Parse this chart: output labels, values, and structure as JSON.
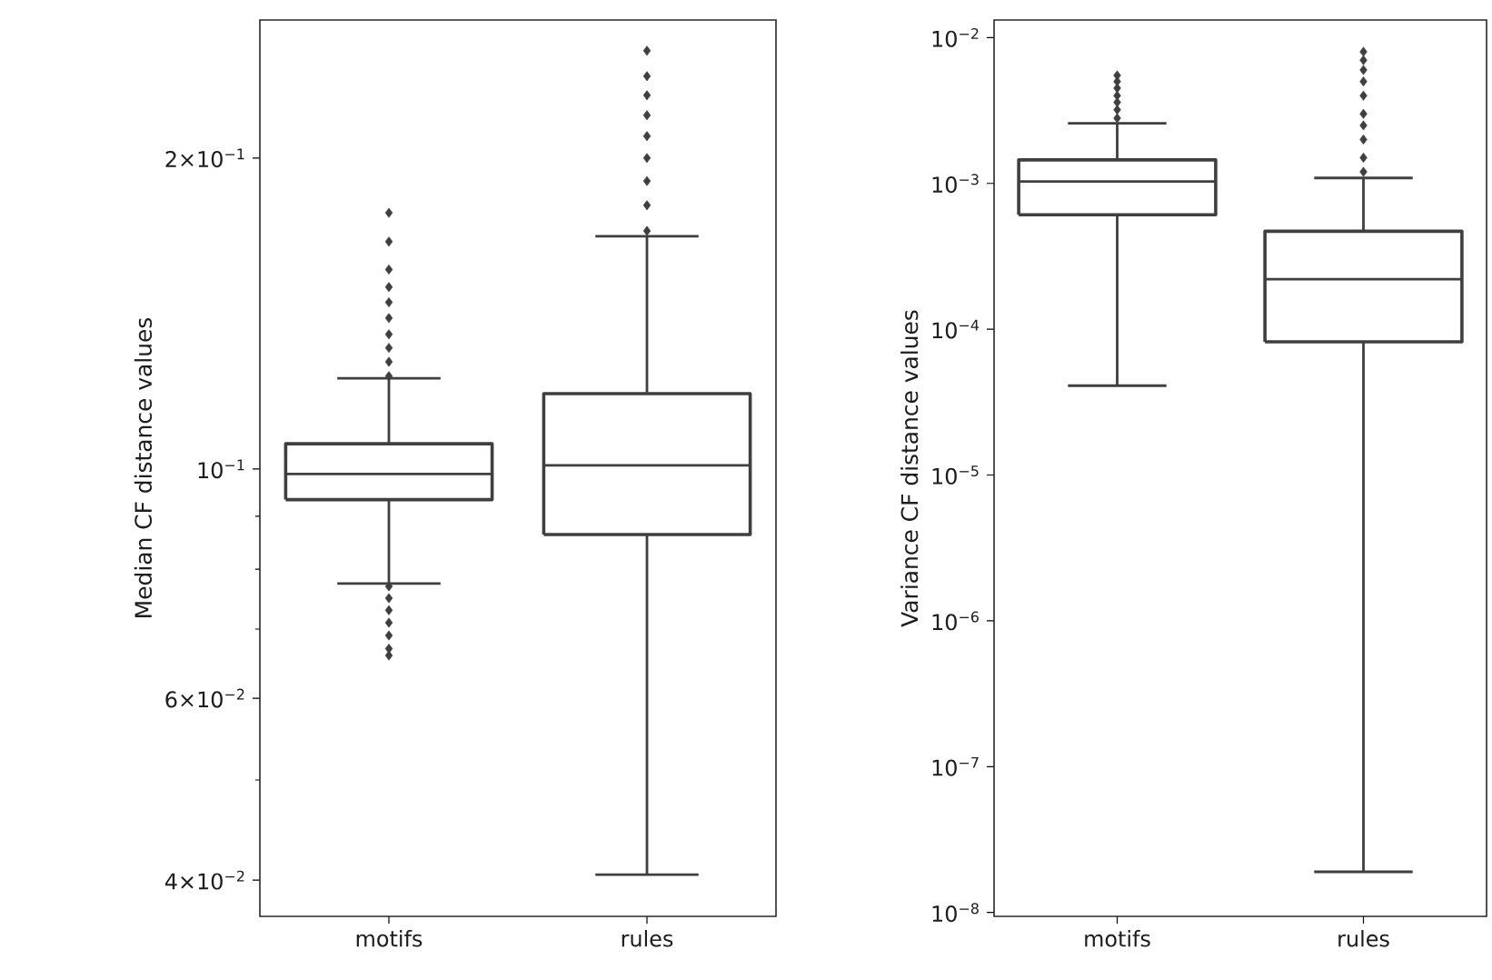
{
  "chart_data": [
    {
      "type": "box",
      "ylabel": "Median CF distance values",
      "categories": [
        "motifs",
        "rules"
      ],
      "log": "y",
      "ylim": [
        0.0369,
        0.272
      ],
      "yticks": [
        {
          "value": 0.04,
          "label": "4×10$^{−2}$"
        },
        {
          "value": 0.05,
          "label": null
        },
        {
          "value": 0.06,
          "label": "6×10$^{−2}$"
        },
        {
          "value": 0.07,
          "label": null
        },
        {
          "value": 0.08,
          "label": null
        },
        {
          "value": 0.09,
          "label": null
        },
        {
          "value": 0.1,
          "label": "10$^{−1}$"
        },
        {
          "value": 0.2,
          "label": "2×10$^{−1}$"
        }
      ],
      "series": [
        {
          "color": "#3f3f3f",
          "boxes": [
            {
              "low": 0.0775,
              "q1": 0.0934,
              "median": 0.0989,
              "q3": 0.1058,
              "high": 0.1224,
              "outliers": [
                0.066,
                0.067,
                0.069,
                0.071,
                0.073,
                0.075,
                0.077,
                0.123,
                0.127,
                0.131,
                0.135,
                0.14,
                0.145,
                0.15,
                0.156,
                0.166,
                0.177
              ]
            },
            {
              "low": 0.0405,
              "q1": 0.0864,
              "median": 0.1008,
              "q3": 0.1183,
              "high": 0.168,
              "outliers": [
                0.17,
                0.18,
                0.19,
                0.2,
                0.21,
                0.22,
                0.23,
                0.24,
                0.254
              ]
            }
          ]
        }
      ]
    },
    {
      "type": "box",
      "ylabel": "Variance CF distance values",
      "categories": [
        "motifs",
        "rules"
      ],
      "log": "y",
      "ylim": [
        9.4e-09,
        0.0132
      ],
      "yticks": [
        {
          "value": 1e-08,
          "label": "10$^{−8}$"
        },
        {
          "value": 1e-07,
          "label": "10$^{−7}$"
        },
        {
          "value": 1e-06,
          "label": "10$^{−6}$"
        },
        {
          "value": 1e-05,
          "label": "10$^{−5}$"
        },
        {
          "value": 0.0001,
          "label": "10$^{−4}$"
        },
        {
          "value": 0.001,
          "label": "10$^{−3}$"
        },
        {
          "value": 0.01,
          "label": "10$^{−2}$"
        }
      ],
      "series": [
        {
          "color": "#3f3f3f",
          "boxes": [
            {
              "low": 4.1e-05,
              "q1": 0.00061,
              "median": 0.00103,
              "q3": 0.00145,
              "high": 0.00258,
              "outliers": [
                0.0028,
                0.0032,
                0.0036,
                0.004,
                0.0045,
                0.005,
                0.0055
              ]
            },
            {
              "low": 1.9e-08,
              "q1": 8.2e-05,
              "median": 0.00022,
              "q3": 0.00047,
              "high": 0.00109,
              "outliers": [
                0.0012,
                0.0015,
                0.002,
                0.0025,
                0.003,
                0.004,
                0.005,
                0.006,
                0.007,
                0.008
              ]
            }
          ]
        }
      ]
    }
  ]
}
